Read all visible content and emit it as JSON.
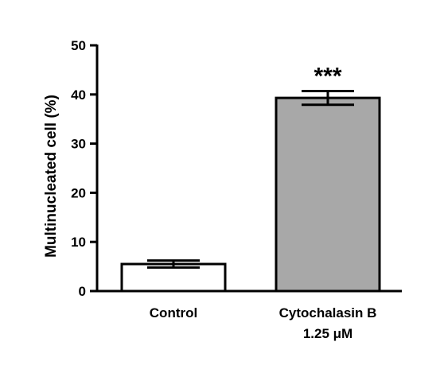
{
  "chart_data": {
    "type": "bar",
    "ylabel": "Multinucleated cell (%)",
    "ylim": [
      0,
      50
    ],
    "yticks": [
      "0",
      "10",
      "20",
      "30",
      "40",
      "50"
    ],
    "categories": [
      {
        "lines": [
          "Control"
        ]
      },
      {
        "lines": [
          "Cytochalasin B",
          "1.25 μM"
        ]
      }
    ],
    "values": [
      5.5,
      39.3
    ],
    "errors": [
      0.7,
      1.4
    ],
    "bar_colors": [
      "#ffffff",
      "#a8a8a8"
    ],
    "annotations": [
      "",
      "***"
    ],
    "grid": false,
    "legend": "none"
  }
}
